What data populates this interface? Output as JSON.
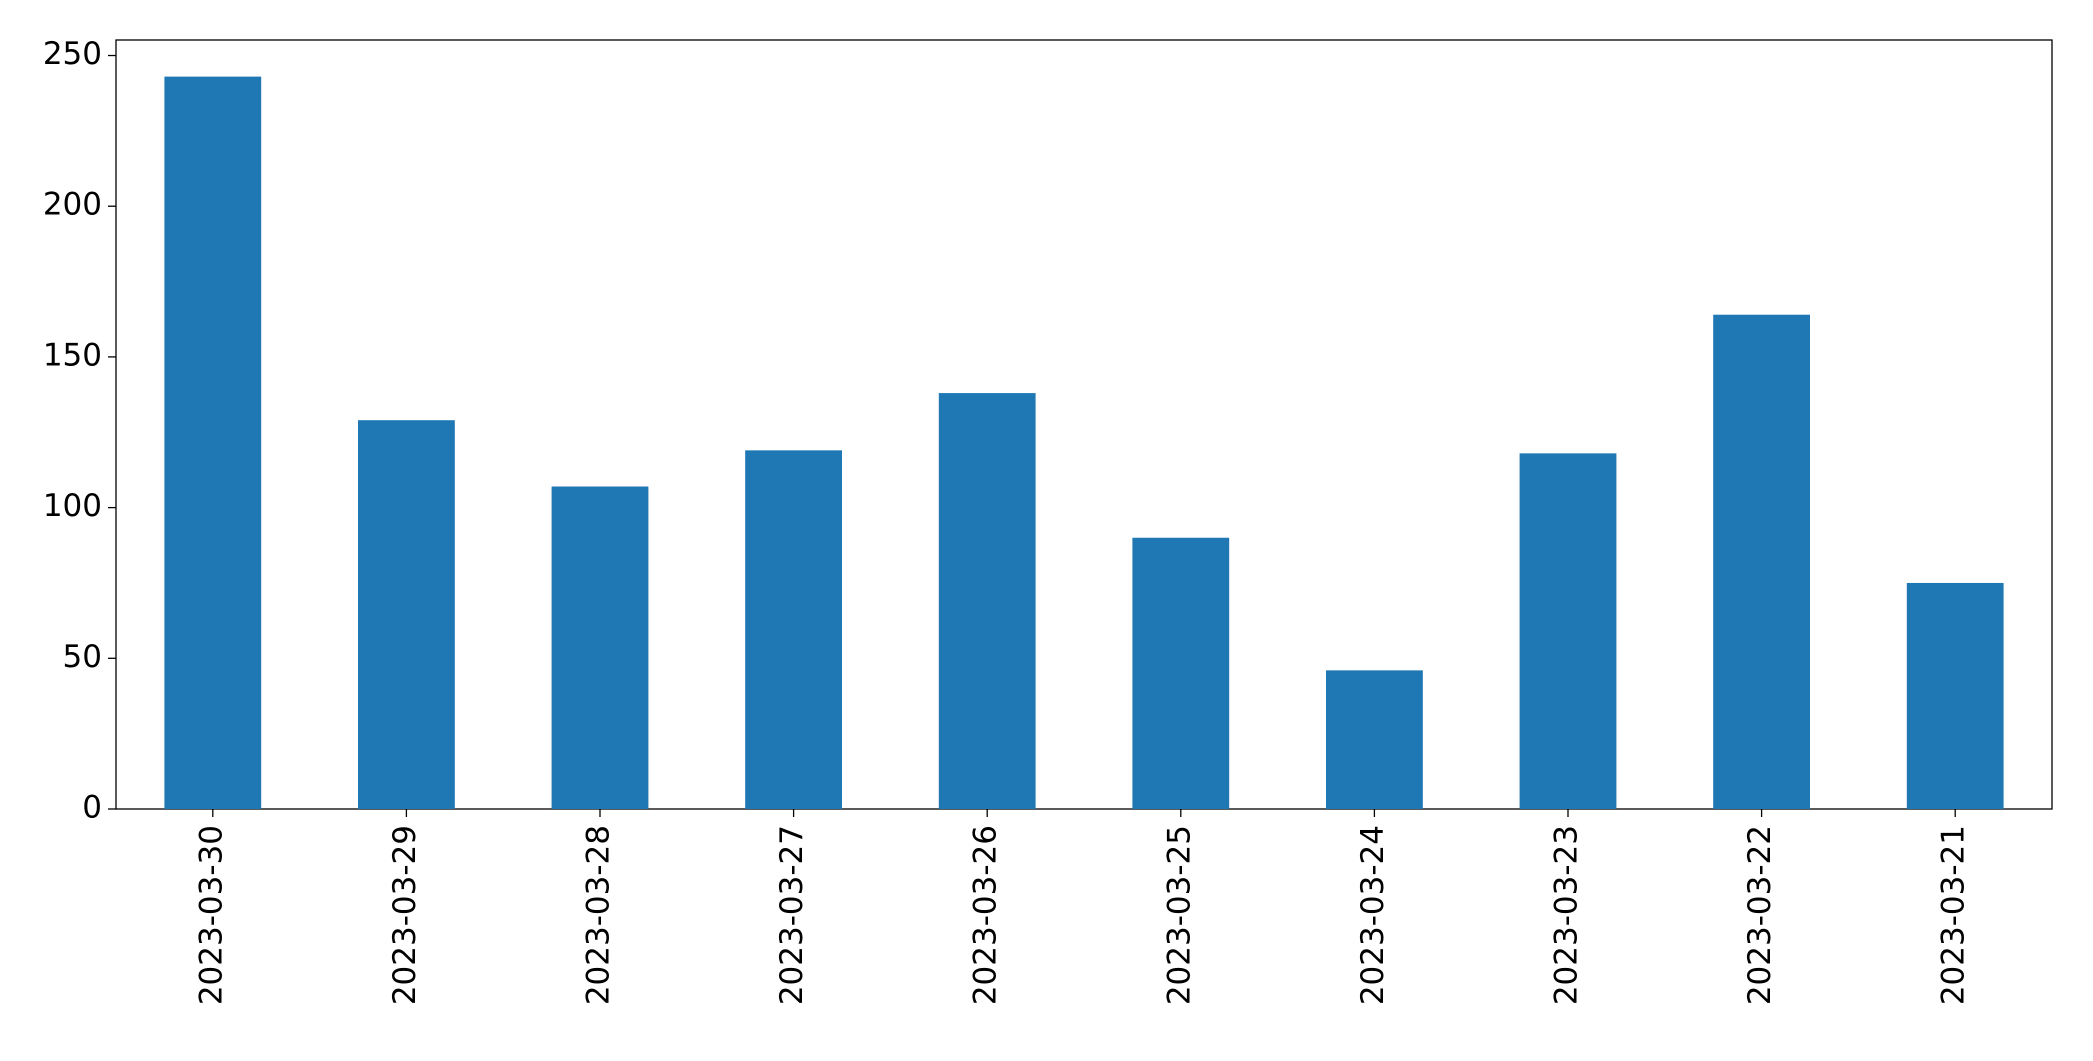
{
  "chart_data": {
    "type": "bar",
    "categories": [
      "2023-03-30",
      "2023-03-29",
      "2023-03-28",
      "2023-03-27",
      "2023-03-26",
      "2023-03-25",
      "2023-03-24",
      "2023-03-23",
      "2023-03-22",
      "2023-03-21"
    ],
    "values": [
      243,
      129,
      107,
      119,
      138,
      90,
      46,
      118,
      164,
      75
    ],
    "color": "#1f77b4",
    "ylim": [
      0,
      255.15
    ],
    "yticks": [
      0,
      50,
      100,
      150,
      200,
      250
    ],
    "grid": false
  }
}
